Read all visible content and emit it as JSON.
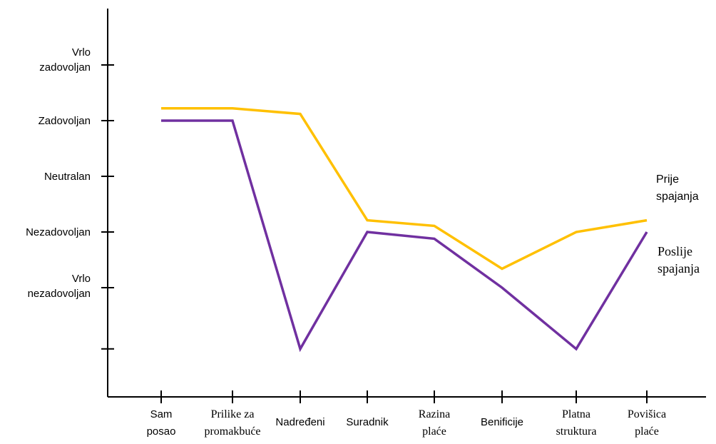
{
  "chart_data": {
    "type": "line",
    "title": "",
    "xlabel": "",
    "ylabel": "",
    "categories": [
      [
        "Sam",
        "posao"
      ],
      [
        "Prilike za",
        "promakbuće"
      ],
      [
        "Nadređeni"
      ],
      [
        "Suradnik"
      ],
      [
        "Razina",
        "plaće"
      ],
      [
        "Benificije"
      ],
      [
        "Platna",
        "struktura"
      ],
      [
        "Povišica",
        "plaće"
      ]
    ],
    "y_ticks": [
      {
        "value": 6,
        "label": [
          "Vrlo",
          "zadovoljan"
        ]
      },
      {
        "value": 5,
        "label": [
          "Zadovoljan"
        ]
      },
      {
        "value": 4,
        "label": [
          "Neutralan"
        ]
      },
      {
        "value": 3,
        "label": [
          "Nezadovoljan"
        ]
      },
      {
        "value": 2,
        "label": [
          "Vrlo",
          "nezadovoljan"
        ]
      },
      {
        "value": 0.9,
        "label": []
      }
    ],
    "ylim": [
      0.3,
      7.0
    ],
    "grid": false,
    "legend": "right, inline labels",
    "series": [
      {
        "name": [
          "Prije",
          "spajanja"
        ],
        "color": "#FFC000",
        "values": [
          5.22,
          5.22,
          5.12,
          3.21,
          3.11,
          2.34,
          3.0,
          3.21
        ]
      },
      {
        "name": [
          "Poslije",
          "spajanja"
        ],
        "color": "#7030A0",
        "values": [
          5.0,
          5.0,
          0.9,
          3.0,
          2.88,
          2.0,
          0.9,
          3.0
        ]
      }
    ]
  }
}
